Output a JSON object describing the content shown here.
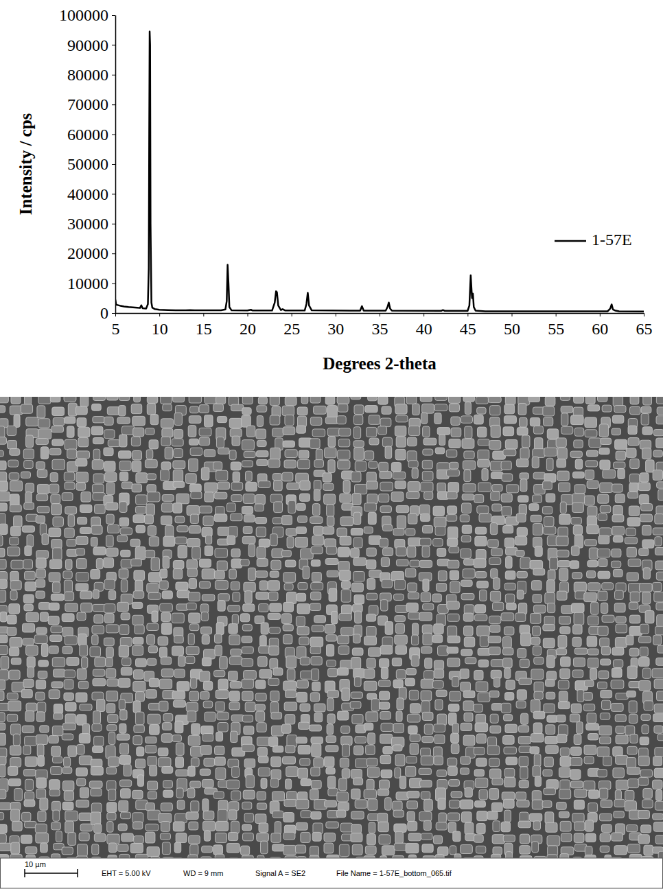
{
  "chart_data": {
    "type": "line",
    "x_label": "Degrees 2-theta",
    "y_label": "Intensity / cps",
    "xlim": [
      5,
      65
    ],
    "xticks": [
      5,
      10,
      15,
      20,
      25,
      30,
      35,
      40,
      45,
      50,
      55,
      60,
      65
    ],
    "ylim": [
      0,
      100000
    ],
    "yticks": [
      0,
      10000,
      20000,
      30000,
      40000,
      50000,
      60000,
      70000,
      80000,
      90000,
      100000
    ],
    "legend": "right",
    "x": [
      5.0,
      5.1,
      5.5,
      6.0,
      6.5,
      7.0,
      7.5,
      7.8,
      7.95,
      8.1,
      8.5,
      8.7,
      8.8,
      8.85,
      8.9,
      8.95,
      9.0,
      9.1,
      9.2,
      9.5,
      10.0,
      11.0,
      12.0,
      13.0,
      13.5,
      14.0,
      15.0,
      16.0,
      17.0,
      17.5,
      17.65,
      17.75,
      17.85,
      17.95,
      18.2,
      20.0,
      20.4,
      20.6,
      22.8,
      23.1,
      23.25,
      23.35,
      23.5,
      23.8,
      24.0,
      24.3,
      26.5,
      26.7,
      26.85,
      27.0,
      27.3,
      32.8,
      33.0,
      33.2,
      35.7,
      35.9,
      36.05,
      36.2,
      36.4,
      42.0,
      42.2,
      42.4,
      45.0,
      45.2,
      45.35,
      45.5,
      45.6,
      45.7,
      45.9,
      47.0,
      50.7,
      51.0,
      60.9,
      61.2,
      61.35,
      61.5,
      61.8,
      62.2,
      65.0
    ],
    "series": [
      {
        "name": "1-57E",
        "color": "#000000",
        "values": [
          4500,
          2800,
          2500,
          2200,
          2000,
          1900,
          1800,
          1700,
          2600,
          1600,
          1500,
          3000,
          15000,
          60000,
          94500,
          90000,
          30000,
          3500,
          1800,
          1300,
          1100,
          1000,
          900,
          900,
          1000,
          950,
          950,
          900,
          900,
          1200,
          4000,
          16200,
          10000,
          2000,
          900,
          850,
          1100,
          850,
          850,
          3500,
          7300,
          7000,
          2500,
          1000,
          1300,
          850,
          850,
          3000,
          6800,
          2500,
          900,
          800,
          2300,
          800,
          800,
          2000,
          3500,
          1500,
          800,
          750,
          1000,
          750,
          750,
          2500,
          12700,
          5000,
          6500,
          2000,
          800,
          600,
          600,
          600,
          600,
          1500,
          2900,
          1200,
          800,
          600,
          500
        ]
      }
    ]
  },
  "micrograph": {
    "scale_bar": "10 µm",
    "eht": "EHT = 5.00 kV",
    "wd": "WD = 9 mm",
    "signal": "Signal A = SE2",
    "file_name": "File Name = 1-57E_bottom_065.tif"
  }
}
